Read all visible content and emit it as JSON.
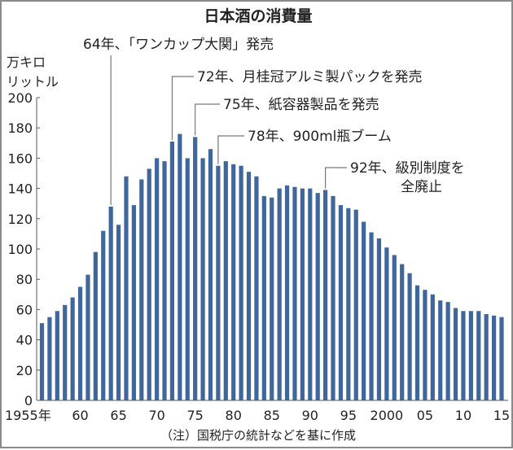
{
  "chart_data": {
    "type": "bar",
    "title": "日本酒の消費量",
    "ylabel": [
      "万キロ",
      "リットル"
    ],
    "xlabel": "",
    "ylim": [
      0,
      200
    ],
    "yticks": [
      0,
      20,
      40,
      60,
      80,
      100,
      120,
      140,
      160,
      180,
      200
    ],
    "x": [
      1955,
      1956,
      1957,
      1958,
      1959,
      1960,
      1961,
      1962,
      1963,
      1964,
      1965,
      1966,
      1967,
      1968,
      1969,
      1970,
      1971,
      1972,
      1973,
      1974,
      1975,
      1976,
      1977,
      1978,
      1979,
      1980,
      1981,
      1982,
      1983,
      1984,
      1985,
      1986,
      1987,
      1988,
      1989,
      1990,
      1991,
      1992,
      1993,
      1994,
      1995,
      1996,
      1997,
      1998,
      1999,
      2000,
      2001,
      2002,
      2003,
      2004,
      2005,
      2006,
      2007,
      2008,
      2009,
      2010,
      2011,
      2012,
      2013,
      2014,
      2015
    ],
    "values": [
      51,
      55,
      59,
      63,
      68,
      75,
      83,
      98,
      112,
      128,
      116,
      148,
      129,
      146,
      153,
      160,
      158,
      171,
      176,
      160,
      174,
      160,
      166,
      155,
      158,
      156,
      155,
      151,
      148,
      135,
      134,
      140,
      142,
      141,
      140,
      140,
      137,
      139,
      135,
      129,
      127,
      126,
      118,
      111,
      107,
      101,
      96,
      90,
      84,
      76,
      73,
      70,
      66,
      65,
      61,
      59,
      59,
      59,
      57,
      56,
      55
    ],
    "xticks": [
      {
        "year": 1955,
        "label": "1955年"
      },
      {
        "year": 1960,
        "label": "60"
      },
      {
        "year": 1965,
        "label": "65"
      },
      {
        "year": 1970,
        "label": "70"
      },
      {
        "year": 1975,
        "label": "75"
      },
      {
        "year": 1980,
        "label": "80"
      },
      {
        "year": 1985,
        "label": "85"
      },
      {
        "year": 1990,
        "label": "90"
      },
      {
        "year": 1995,
        "label": "95"
      },
      {
        "year": 2000,
        "label": "2000"
      },
      {
        "year": 2005,
        "label": "05"
      },
      {
        "year": 2010,
        "label": "10"
      },
      {
        "year": 2015,
        "label": "15"
      }
    ],
    "annotations": [
      {
        "year": 1964,
        "lines": [
          "64年、「ワンカップ大関」発売"
        ]
      },
      {
        "year": 1972,
        "lines": [
          "72年、月桂冠アルミ製パックを発売"
        ]
      },
      {
        "year": 1975,
        "lines": [
          "75年、紙容器製品を発売"
        ]
      },
      {
        "year": 1978,
        "lines": [
          "78年、900ml瓶ブーム"
        ]
      },
      {
        "year": 1992,
        "lines": [
          "92年、級別制度を",
          "全廃止"
        ]
      }
    ],
    "note": "（注）国税庁の統計などを基に作成",
    "bar_color": "#3f679b",
    "grid": false
  }
}
